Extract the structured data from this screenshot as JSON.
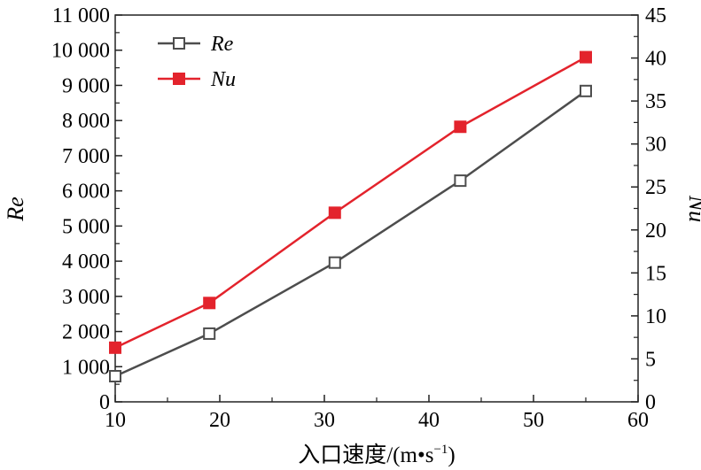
{
  "chart_data": {
    "type": "line",
    "xlabel": "入口速度/(m·s⁻¹)",
    "xlabel_main": "入口速度/(m",
    "xlabel_tail": "s",
    "xlabel_sup": "−1",
    "ylabel_left": "Re",
    "ylabel_right": "Nu",
    "xlim": [
      10,
      60
    ],
    "ylim_left": [
      0,
      11000
    ],
    "ylim_right": [
      0,
      45
    ],
    "x_ticks": [
      "10",
      "20",
      "30",
      "40",
      "50",
      "60"
    ],
    "left_ticks": [
      "0",
      "1 000",
      "2 000",
      "3 000",
      "4 000",
      "5 000",
      "6 000",
      "7 000",
      "8 000",
      "9 000",
      "10 000",
      "11 000"
    ],
    "right_ticks": [
      "0",
      "5",
      "10",
      "15",
      "20",
      "25",
      "30",
      "35",
      "40",
      "45"
    ],
    "legend_position": "top-left",
    "series": [
      {
        "name": "Re",
        "axis": "left",
        "color": "#4d4d4d",
        "marker": "open-square",
        "x": [
          10,
          19,
          31,
          43,
          55
        ],
        "values": [
          730,
          1940,
          3960,
          6290,
          8840
        ]
      },
      {
        "name": "Nu",
        "axis": "right",
        "color": "#e3232c",
        "marker": "filled-square",
        "x": [
          10,
          19,
          31,
          43,
          55
        ],
        "values": [
          6.3,
          11.5,
          22.0,
          32.0,
          40.1
        ]
      }
    ]
  }
}
